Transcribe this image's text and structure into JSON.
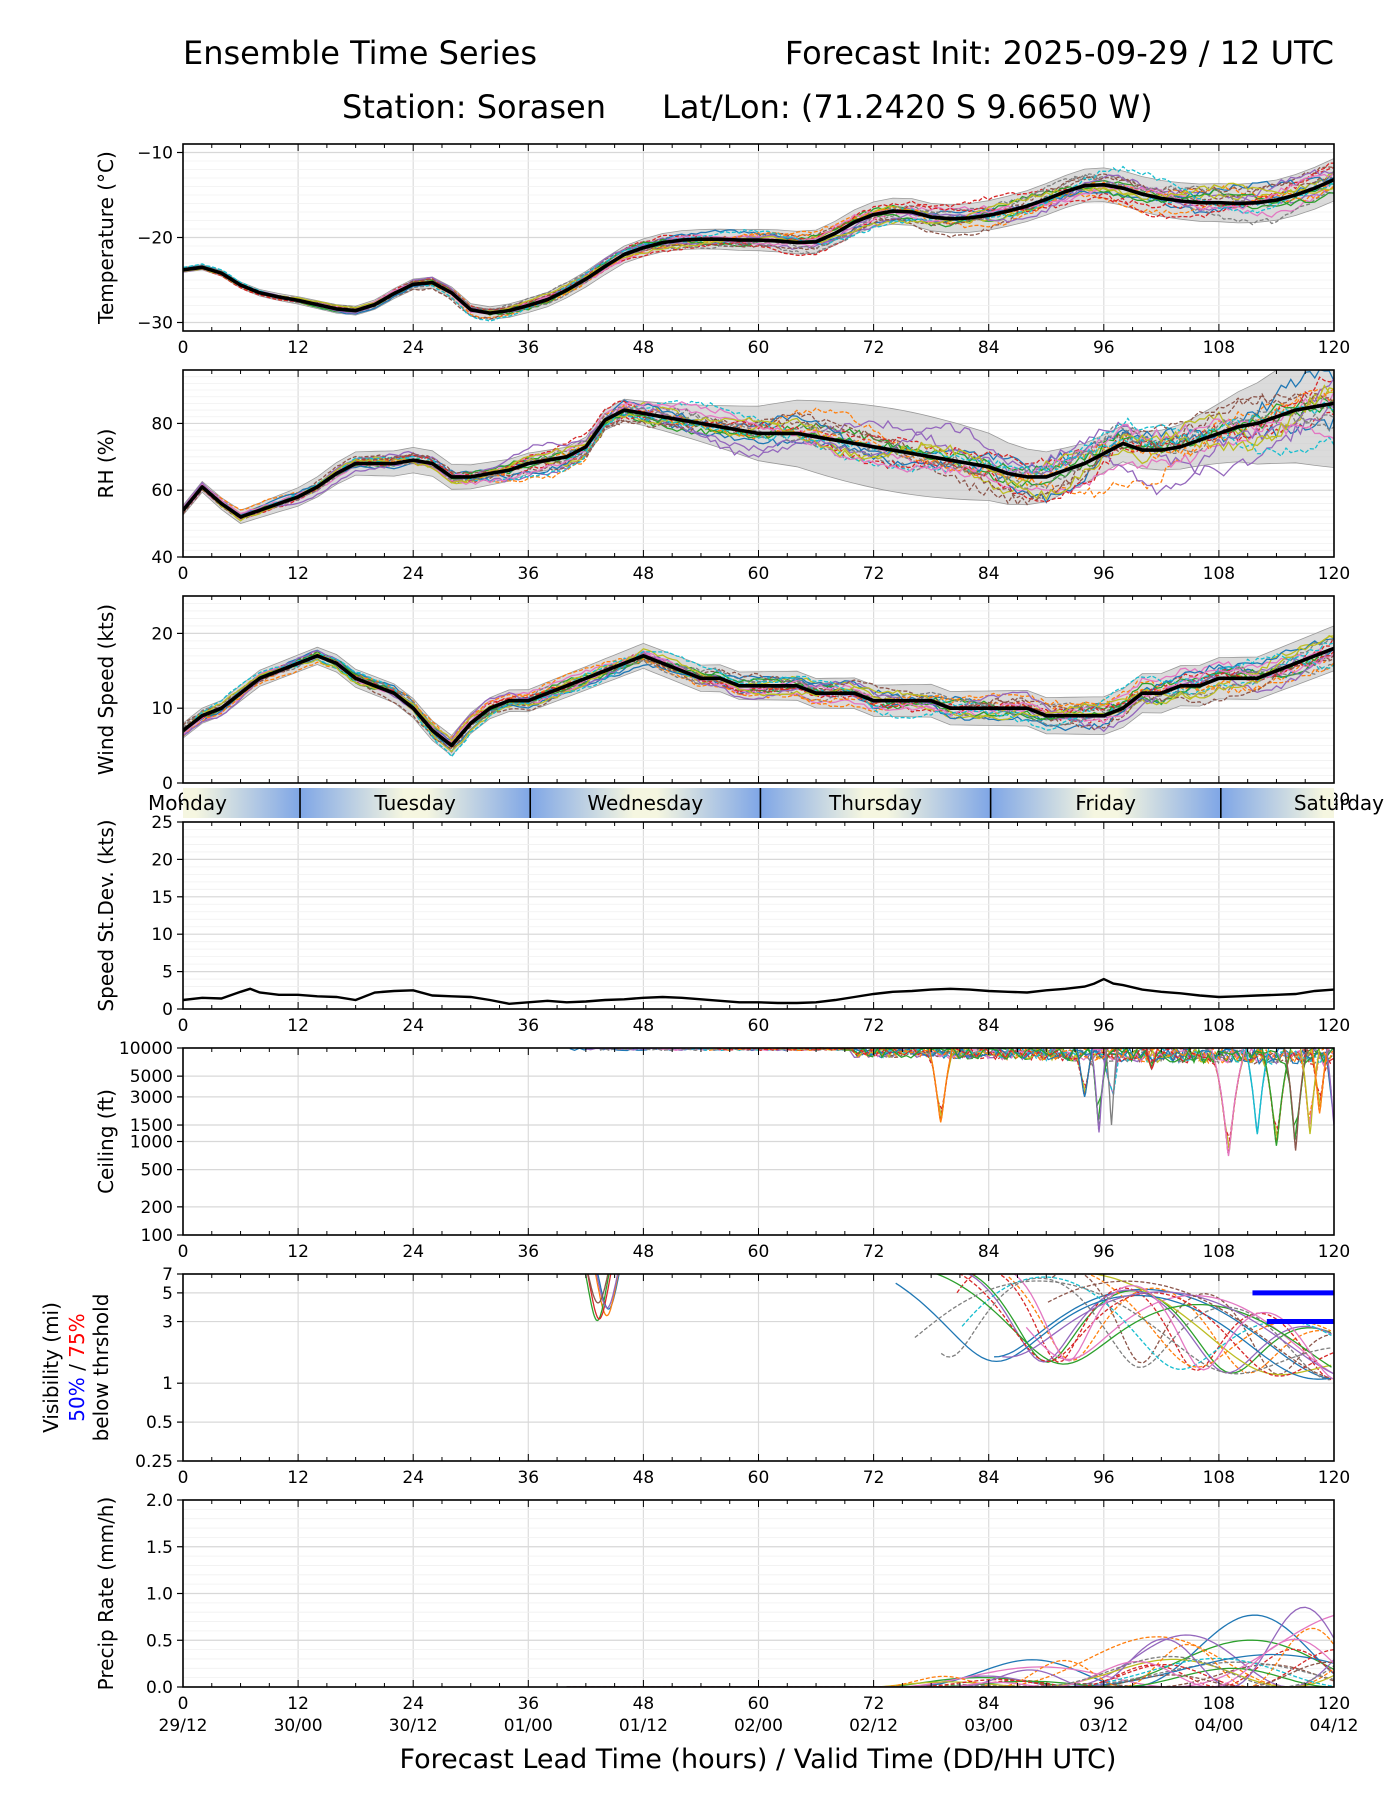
{
  "header": {
    "title_left": "Ensemble Time Series",
    "title_right": "Forecast Init: 2025-09-29 / 12 UTC",
    "station_label": "Station: Sorasen",
    "latlon_label": "Lat/Lon: (71.2420 S 9.6650 W)"
  },
  "x_axis": {
    "ticks": [
      0,
      12,
      24,
      36,
      48,
      60,
      72,
      84,
      96,
      108,
      120
    ],
    "valid_times": [
      "29/12",
      "30/00",
      "30/12",
      "01/00",
      "01/12",
      "02/00",
      "02/12",
      "03/00",
      "03/12",
      "04/00",
      "04/12"
    ],
    "xlabel": "Forecast Lead Time (hours) / Valid Time (DD/HH UTC)",
    "range": [
      0,
      120
    ]
  },
  "day_band": {
    "days": [
      "Monday",
      "Tuesday",
      "Wednesday",
      "Thursday",
      "Friday",
      "Saturday"
    ],
    "boundaries_hours": [
      12.2,
      36.2,
      60.2,
      84.2,
      108.2
    ]
  },
  "colors": {
    "mean": "#000000",
    "spread_fill": "#c8c8c8",
    "vis_50": "#0000ff",
    "vis_75": "#ff0000",
    "members": [
      "#1f77b4",
      "#ff7f0e",
      "#2ca02c",
      "#d62728",
      "#9467bd",
      "#8c564b",
      "#e377c2",
      "#7f7f7f",
      "#bcbd22",
      "#17becf"
    ]
  },
  "chart_data": [
    {
      "id": "temperature",
      "type": "line",
      "title": "",
      "ylabel": "Temperature (°C)",
      "ylim": [
        -31,
        -9
      ],
      "yticks": [
        -10,
        -20,
        -30
      ],
      "ytick_labels": [
        "−10",
        "−20",
        "−30"
      ],
      "grid": true,
      "mean": {
        "x": [
          0,
          2,
          4,
          6,
          8,
          10,
          12,
          14,
          16,
          18,
          20,
          22,
          24,
          26,
          28,
          30,
          32,
          34,
          36,
          38,
          40,
          42,
          44,
          46,
          48,
          50,
          52,
          54,
          56,
          58,
          60,
          62,
          64,
          66,
          68,
          70,
          72,
          74,
          76,
          78,
          80,
          82,
          84,
          86,
          88,
          90,
          92,
          94,
          96,
          98,
          100,
          102,
          104,
          106,
          108,
          110,
          112,
          114,
          116,
          118,
          120
        ],
        "y": [
          -23.8,
          -23.5,
          -24.2,
          -25.6,
          -26.5,
          -27.0,
          -27.4,
          -27.9,
          -28.4,
          -28.6,
          -27.9,
          -26.6,
          -25.5,
          -25.3,
          -26.5,
          -28.5,
          -28.9,
          -28.6,
          -28.0,
          -27.3,
          -26.2,
          -24.9,
          -23.4,
          -22.0,
          -21.2,
          -20.6,
          -20.3,
          -20.2,
          -20.2,
          -20.3,
          -20.3,
          -20.4,
          -20.6,
          -20.5,
          -19.5,
          -18.2,
          -17.3,
          -16.9,
          -17.0,
          -17.6,
          -17.8,
          -17.7,
          -17.4,
          -16.9,
          -16.3,
          -15.5,
          -14.6,
          -13.9,
          -13.8,
          -14.2,
          -14.9,
          -15.4,
          -15.7,
          -15.9,
          -15.9,
          -16.0,
          -15.9,
          -15.6,
          -15.0,
          -14.2,
          -13.2
        ]
      },
      "members_count": 20,
      "spread_base": [
        0.3,
        2.5
      ]
    },
    {
      "id": "rh",
      "type": "line",
      "ylabel": "RH (%)",
      "ylim": [
        40,
        96
      ],
      "yticks": [
        40,
        60,
        80
      ],
      "ytick_labels": [
        "40",
        "60",
        "80"
      ],
      "grid": true,
      "mean": {
        "x": [
          0,
          2,
          4,
          6,
          8,
          10,
          12,
          14,
          16,
          18,
          20,
          22,
          24,
          26,
          28,
          30,
          32,
          34,
          36,
          38,
          40,
          42,
          44,
          46,
          48,
          50,
          52,
          54,
          56,
          58,
          60,
          62,
          64,
          66,
          68,
          70,
          72,
          74,
          76,
          78,
          80,
          82,
          84,
          86,
          88,
          90,
          92,
          94,
          96,
          98,
          100,
          102,
          104,
          106,
          108,
          110,
          112,
          114,
          116,
          118,
          120
        ],
        "y": [
          54,
          61,
          56,
          52,
          54,
          56,
          58,
          61,
          65,
          68,
          68,
          68,
          69,
          68,
          64,
          64,
          65,
          66,
          68,
          69,
          70,
          73,
          81,
          84,
          83,
          82,
          81,
          80,
          79,
          78,
          77,
          77,
          77,
          76,
          75,
          74,
          73,
          72,
          71,
          70,
          69,
          68,
          67,
          65,
          64,
          64,
          66,
          68,
          71,
          74,
          72,
          72,
          73,
          75,
          77,
          79,
          80,
          82,
          84,
          85,
          86
        ]
      },
      "members_count": 20,
      "spread_base": [
        1.5,
        14
      ]
    },
    {
      "id": "wind_speed",
      "type": "line",
      "ylabel": "Wind Speed (kts)",
      "ylim": [
        0,
        25
      ],
      "yticks": [
        0,
        10,
        20
      ],
      "ytick_labels": [
        "0",
        "10",
        "20"
      ],
      "grid": true,
      "mean": {
        "x": [
          0,
          2,
          4,
          6,
          8,
          10,
          12,
          14,
          16,
          18,
          20,
          22,
          24,
          26,
          28,
          30,
          32,
          34,
          36,
          38,
          40,
          42,
          44,
          46,
          48,
          50,
          52,
          54,
          56,
          58,
          60,
          62,
          64,
          66,
          68,
          70,
          72,
          74,
          76,
          78,
          80,
          82,
          84,
          86,
          88,
          90,
          92,
          94,
          96,
          98,
          100,
          102,
          104,
          106,
          108,
          110,
          112,
          114,
          116,
          118,
          120
        ],
        "y": [
          7,
          9,
          10,
          12,
          14,
          15,
          16,
          17,
          16,
          14,
          13,
          12,
          10,
          7,
          5,
          8,
          10,
          11,
          11,
          12,
          13,
          14,
          15,
          16,
          17,
          16,
          15,
          14,
          14,
          13,
          13,
          13,
          13,
          12,
          12,
          12,
          11,
          11,
          11,
          11,
          10,
          10,
          10,
          10,
          10,
          9,
          9,
          9,
          9,
          10,
          12,
          12,
          13,
          13,
          14,
          14,
          14,
          15,
          16,
          17,
          18
        ]
      },
      "members_count": 20,
      "spread_base": [
        1,
        3
      ]
    },
    {
      "id": "speed_stdev",
      "type": "line",
      "ylabel": "Speed St.Dev. (kts)",
      "ylim": [
        0,
        25
      ],
      "yticks": [
        0,
        5,
        10,
        15,
        20,
        25
      ],
      "ytick_labels": [
        "0",
        "5",
        "10",
        "15",
        "20",
        "25"
      ],
      "grid": true,
      "mean": {
        "x": [
          0,
          2,
          4,
          6,
          7,
          8,
          10,
          12,
          14,
          16,
          18,
          20,
          22,
          24,
          26,
          28,
          30,
          32,
          34,
          36,
          38,
          40,
          42,
          44,
          46,
          48,
          50,
          52,
          54,
          56,
          58,
          60,
          62,
          64,
          66,
          68,
          70,
          72,
          74,
          76,
          78,
          80,
          82,
          84,
          86,
          88,
          90,
          92,
          94,
          95,
          96,
          97,
          98,
          100,
          102,
          104,
          106,
          108,
          110,
          112,
          114,
          116,
          118,
          120
        ],
        "y": [
          1.2,
          1.5,
          1.4,
          2.3,
          2.7,
          2.2,
          1.9,
          1.9,
          1.7,
          1.6,
          1.2,
          2.2,
          2.4,
          2.5,
          1.8,
          1.7,
          1.6,
          1.2,
          0.7,
          0.9,
          1.1,
          0.9,
          1.0,
          1.2,
          1.3,
          1.5,
          1.6,
          1.5,
          1.3,
          1.1,
          0.9,
          0.9,
          0.8,
          0.8,
          0.9,
          1.2,
          1.6,
          2.0,
          2.3,
          2.4,
          2.6,
          2.7,
          2.6,
          2.4,
          2.3,
          2.2,
          2.5,
          2.7,
          3.0,
          3.4,
          4.0,
          3.4,
          3.2,
          2.6,
          2.3,
          2.1,
          1.8,
          1.6,
          1.7,
          1.8,
          1.9,
          2.0,
          2.4,
          2.6
        ]
      }
    },
    {
      "id": "ceiling",
      "type": "line",
      "ylabel": "Ceiling (ft)",
      "yscale": "log",
      "ylim": [
        100,
        10000
      ],
      "yticks": [
        100,
        200,
        500,
        1000,
        1500,
        3000,
        5000,
        10000
      ],
      "ytick_labels": [
        "100",
        "200",
        "500",
        "1000",
        "1500",
        "3000",
        "5000",
        "10000"
      ],
      "grid": true,
      "dips": [
        {
          "x": 79,
          "min": 1600,
          "width": 1.2
        },
        {
          "x": 95.5,
          "min": 1250,
          "width": 0.8
        },
        {
          "x": 96.8,
          "min": 1500,
          "width": 0.6
        },
        {
          "x": 94,
          "min": 3000,
          "width": 0.8
        },
        {
          "x": 101,
          "min": 6000,
          "width": 0.6
        },
        {
          "x": 109,
          "min": 700,
          "width": 1.8
        },
        {
          "x": 112,
          "min": 1200,
          "width": 1.2
        },
        {
          "x": 114,
          "min": 900,
          "width": 1.5
        },
        {
          "x": 116,
          "min": 800,
          "width": 1.2
        },
        {
          "x": 117.5,
          "min": 1200,
          "width": 1.0
        },
        {
          "x": 118.5,
          "min": 2000,
          "width": 0.8
        },
        {
          "x": 120,
          "min": 1500,
          "width": 0.8
        }
      ]
    },
    {
      "id": "visibility",
      "type": "line",
      "ylabel_line1": "Visibility (mi)",
      "ylabel_50": "50%",
      "ylabel_sep": " / ",
      "ylabel_75": "75%",
      "ylabel_line3": "below thrshold",
      "yscale": "log",
      "ylim": [
        0.25,
        7
      ],
      "yticks": [
        0.25,
        0.5,
        1,
        3,
        5,
        7
      ],
      "ytick_labels": [
        "0.25",
        "0.5",
        "1",
        "3",
        "5",
        "7"
      ],
      "grid": true,
      "threshold_50": [
        {
          "x0": 111.5,
          "x1": 120,
          "y": 5
        },
        {
          "x0": 113.0,
          "x1": 120,
          "y": 3
        }
      ],
      "threshold_75": []
    },
    {
      "id": "precip_rate",
      "type": "line",
      "ylabel": "Precip Rate (mm/h)",
      "ylim": [
        0,
        2.0
      ],
      "yticks": [
        0,
        0.5,
        1.0,
        1.5,
        2.0
      ],
      "ytick_labels": [
        "0.0",
        "0.5",
        "1.0",
        "1.5",
        "2.0"
      ],
      "grid": true
    }
  ]
}
